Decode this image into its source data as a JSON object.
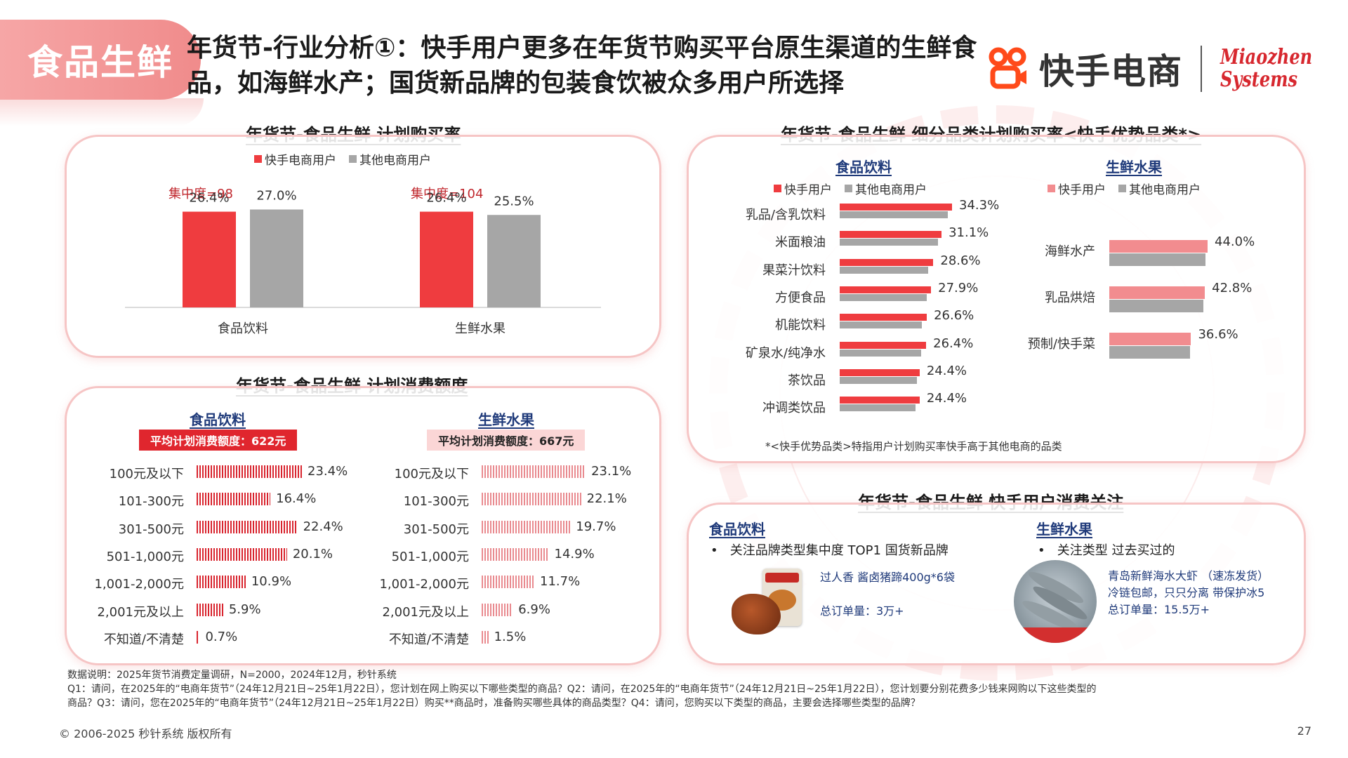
{
  "header": {
    "category": "食品生鲜",
    "headline": "年货节-行业分析①：快手用户更多在年货节购买平台原生渠道的生鲜食品，如海鲜水产；国货新品牌的包装食饮被众多用户所选择",
    "brand": "快手电商",
    "logo_line1": "Miaozhen",
    "logo_line2": "Systems"
  },
  "colors": {
    "red": "#ef3c3f",
    "gray": "#a6a6a6",
    "pink": "#f28c8f",
    "navy": "#1f3a7a"
  },
  "legend": {
    "ks_ecom": "快手电商用户",
    "other_ecom": "其他电商用户",
    "ks": "快手用户"
  },
  "chart_data": [
    {
      "type": "bar",
      "title": "年货节-食品生鲜 计划购买率",
      "categories": [
        "食品饮料",
        "生鲜水果"
      ],
      "series": [
        {
          "name": "快手电商用户",
          "values": [
            26.4,
            26.4
          ]
        },
        {
          "name": "其他电商用户",
          "values": [
            27.0,
            25.5
          ]
        }
      ],
      "value_labels": [
        [
          "26.4%",
          "26.4%"
        ],
        [
          "27.0%",
          "25.5%"
        ]
      ],
      "annotations": [
        "集中度=98",
        "集中度=104"
      ],
      "ylim": [
        0,
        30
      ]
    },
    {
      "type": "bar",
      "title": "年货节-食品生鲜 计划消费额度",
      "subtitle": "食品饮料",
      "avg_label": "平均计划消费额度：622元",
      "categories": [
        "100元及以下",
        "101-300元",
        "301-500元",
        "501-1,000元",
        "1,001-2,000元",
        "2,001元及以上",
        "不知道/不清楚"
      ],
      "values": [
        23.4,
        16.4,
        22.4,
        20.1,
        10.9,
        5.9,
        0.7
      ],
      "value_labels": [
        "23.4%",
        "16.4%",
        "22.4%",
        "20.1%",
        "10.9%",
        "5.9%",
        "0.7%"
      ],
      "xlim": [
        0,
        25
      ]
    },
    {
      "type": "bar",
      "subtitle": "生鲜水果",
      "avg_label": "平均计划消费额度：667元",
      "categories": [
        "100元及以下",
        "101-300元",
        "301-500元",
        "501-1,000元",
        "1,001-2,000元",
        "2,001元及以上",
        "不知道/不清楚"
      ],
      "values": [
        23.1,
        22.1,
        19.7,
        14.9,
        11.7,
        6.9,
        1.5
      ],
      "value_labels": [
        "23.1%",
        "22.1%",
        "19.7%",
        "14.9%",
        "11.7%",
        "6.9%",
        "1.5%"
      ],
      "xlim": [
        0,
        25
      ]
    },
    {
      "type": "bar",
      "title": "年货节-食品生鲜 细分品类计划购买率<快手优势品类*>",
      "subtitle": "食品饮料",
      "categories": [
        "乳品/含乳饮料",
        "米面粮油",
        "果菜汁饮料",
        "方便食品",
        "机能饮料",
        "矿泉水/纯净水",
        "茶饮品",
        "冲调类饮品"
      ],
      "series": [
        {
          "name": "快手用户",
          "values": [
            34.3,
            31.1,
            28.6,
            27.9,
            26.6,
            26.4,
            24.4,
            24.4
          ]
        },
        {
          "name": "其他电商用户",
          "values": [
            33.0,
            30.0,
            27.0,
            26.5,
            25.0,
            24.8,
            23.5,
            23.2
          ]
        }
      ],
      "value_labels": [
        "34.3%",
        "31.1%",
        "28.6%",
        "27.9%",
        "26.6%",
        "26.4%",
        "24.4%",
        "24.4%"
      ],
      "xlim": [
        0,
        36
      ]
    },
    {
      "type": "bar",
      "subtitle": "生鲜水果",
      "categories": [
        "海鲜水产",
        "乳品烘焙",
        "预制/快手菜"
      ],
      "series": [
        {
          "name": "快手用户",
          "values": [
            44.0,
            42.8,
            36.6
          ]
        },
        {
          "name": "其他电商用户",
          "values": [
            43.0,
            42.0,
            36.0
          ]
        }
      ],
      "value_labels": [
        "44.0%",
        "42.8%",
        "36.6%"
      ],
      "xlim": [
        0,
        48
      ]
    }
  ],
  "sec3_note": "*<快手优势品类>特指用户计划购买率快手高于其他电商的品类",
  "sec4": {
    "title": "年货节-食品生鲜 快手用户消费关注",
    "left_head": "食品饮料",
    "left_bullet": "关注品牌类型集中度 TOP1 国货新品牌",
    "left_prod": "过人香 酱卤猪蹄400g*6袋",
    "left_orders": "总订单量：3万+",
    "right_head": "生鲜水果",
    "right_bullet": "关注类型 过去买过的",
    "right_prod1": "青岛新鲜海水大虾 （速冻发货）",
    "right_prod2": "冷链包邮，只只分离 带保护冰5",
    "right_orders": "总订单量：15.5万+"
  },
  "footnote": {
    "l1": "数据说明：2025年货节消费定量调研，N=2000，2024年12月，秒针系统",
    "l2": "Q1：请问，在2025年的“电商年货节”（24年12月21日~25年1月22日），您计划在网上购买以下哪些类型的商品？Q2：请问，在2025年的“电商年货节”（24年12月21日~25年1月22日），您计划要分别花费多少钱来网购以下这些类型的",
    "l3": "商品？Q3：请问，您在2025年的“电商年货节”（24年12月21日~25年1月22日）购买**商品时，准备购买哪些具体的商品类型？Q4：请问，您购买以下类型的商品，主要会选择哪些类型的品牌？"
  },
  "copyright": "© 2006-2025 秒针系统 版权所有",
  "page_no": "27"
}
